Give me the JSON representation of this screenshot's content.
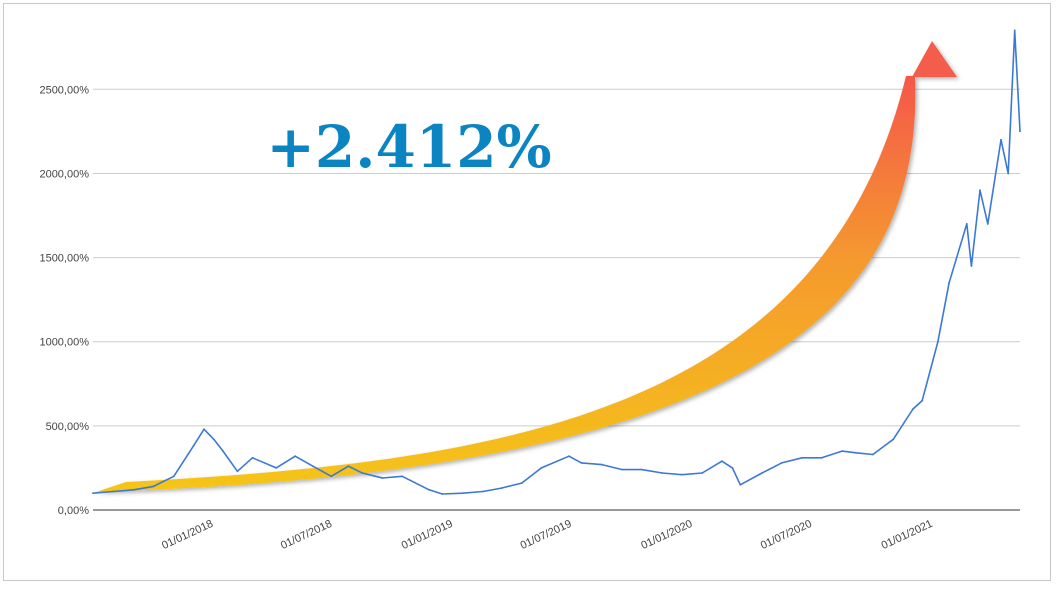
{
  "chart_data": {
    "type": "line",
    "headline": "+2.412%",
    "y_ticks": [
      "0,00%",
      "500,00%",
      "1000,00%",
      "1500,00%",
      "2000,00%",
      "2500,00%"
    ],
    "y_tick_values": [
      0,
      500,
      1000,
      1500,
      2000,
      2500
    ],
    "ylim": [
      0,
      2900
    ],
    "x_ticks": [
      "01/01/2018",
      "01/07/2018",
      "01/01/2019",
      "01/07/2019",
      "01/01/2020",
      "01/07/2020",
      "01/01/2021"
    ],
    "xlim": [
      "2017-07-01",
      "2021-05-13"
    ],
    "grid": true,
    "series": [
      {
        "color": "#3c78d8",
        "x": [
          "2017-07-01",
          "2017-08-01",
          "2017-09-01",
          "2017-10-01",
          "2017-11-01",
          "2017-12-01",
          "2017-12-17",
          "2018-01-01",
          "2018-01-15",
          "2018-02-06",
          "2018-03-01",
          "2018-04-06",
          "2018-05-05",
          "2018-06-01",
          "2018-06-29",
          "2018-07-25",
          "2018-08-15",
          "2018-09-15",
          "2018-10-15",
          "2018-11-25",
          "2018-12-15",
          "2019-01-15",
          "2019-02-15",
          "2019-03-15",
          "2019-04-15",
          "2019-05-15",
          "2019-06-26",
          "2019-07-15",
          "2019-08-15",
          "2019-09-15",
          "2019-10-15",
          "2019-11-15",
          "2019-12-15",
          "2020-01-15",
          "2020-02-14",
          "2020-03-01",
          "2020-03-13",
          "2020-04-15",
          "2020-05-15",
          "2020-06-15",
          "2020-07-15",
          "2020-08-15",
          "2020-09-05",
          "2020-10-01",
          "2020-11-01",
          "2020-12-01",
          "2020-12-15",
          "2021-01-08",
          "2021-01-25",
          "2021-02-21",
          "2021-02-28",
          "2021-03-13",
          "2021-03-25",
          "2021-04-14",
          "2021-04-25",
          "2021-05-05",
          "2021-05-13"
        ],
        "values": [
          100,
          110,
          120,
          140,
          200,
          380,
          480,
          420,
          350,
          230,
          310,
          250,
          320,
          260,
          200,
          260,
          220,
          190,
          200,
          120,
          95,
          100,
          110,
          130,
          160,
          250,
          320,
          280,
          270,
          240,
          240,
          220,
          210,
          220,
          290,
          250,
          150,
          220,
          280,
          310,
          310,
          350,
          340,
          330,
          420,
          600,
          650,
          1000,
          1350,
          1700,
          1450,
          1900,
          1700,
          2200,
          2000,
          2850,
          2250
        ]
      }
    ],
    "overlay_color": "#f5c518",
    "arrow_head_color": "#f45b4b"
  }
}
